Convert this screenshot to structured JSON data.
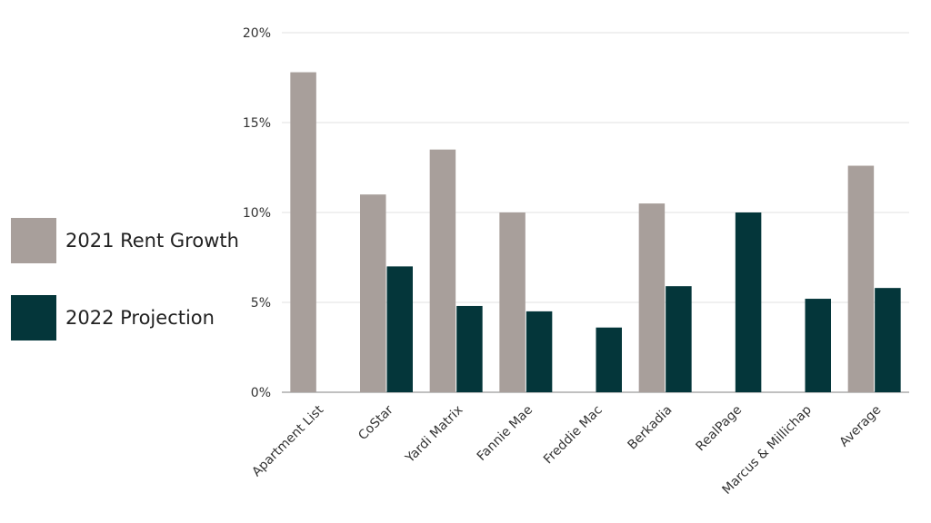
{
  "chart_data": {
    "type": "bar",
    "categories": [
      "Apartment List",
      "CoStar",
      "Yardi Matrix",
      "Fannie Mae",
      "Freddie Mac",
      "Berkadia",
      "RealPage",
      "Marcus & Millichap",
      "Average"
    ],
    "series": [
      {
        "name": "2021 Rent Growth",
        "color": "#a89f9b",
        "values": [
          17.8,
          11.0,
          13.5,
          10.0,
          null,
          10.5,
          null,
          null,
          12.6
        ]
      },
      {
        "name": "2022 Projection",
        "color": "#04363a",
        "values": [
          null,
          7.0,
          4.8,
          4.5,
          3.6,
          5.9,
          10.0,
          5.2,
          5.8
        ]
      }
    ],
    "ylim": [
      0,
      20
    ],
    "yticks": [
      0,
      5,
      10,
      15,
      20
    ],
    "ytick_labels": [
      "0%",
      "5%",
      "10%",
      "15%",
      "20%"
    ],
    "grid": true,
    "legend_position": "left"
  }
}
